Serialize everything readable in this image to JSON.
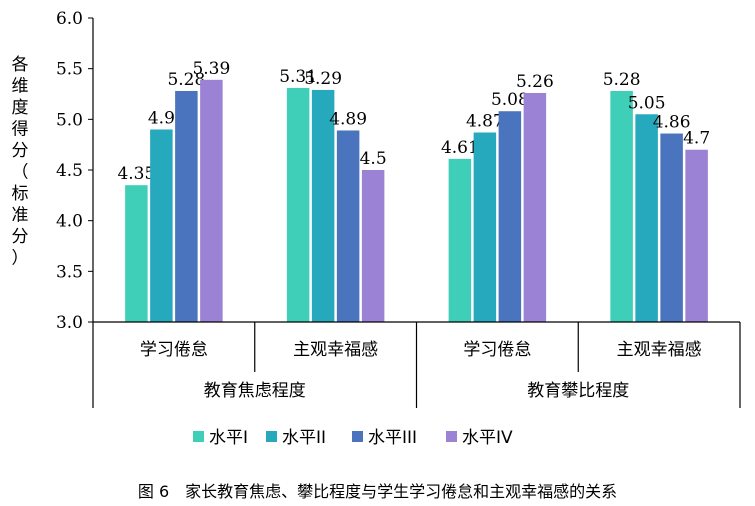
{
  "chart_data": {
    "type": "bar",
    "ylabel": "各维度得分（标准分）",
    "ylim": [
      3.0,
      6.0
    ],
    "yticks": [
      "3.0",
      "3.5",
      "4.0",
      "4.5",
      "5.0",
      "5.5",
      "6.0"
    ],
    "groups": [
      {
        "name": "教育焦虑程度",
        "categories": [
          "学习倦怠",
          "主观幸福感"
        ]
      },
      {
        "name": "教育攀比程度",
        "categories": [
          "学习倦怠",
          "主观幸福感"
        ]
      }
    ],
    "series": [
      {
        "name": "水平I",
        "color": "#3fcfb8",
        "values": [
          4.35,
          5.31,
          4.61,
          5.28
        ],
        "labels": [
          "4.35",
          "5.31",
          "4.61",
          "5.28"
        ]
      },
      {
        "name": "水平II",
        "color": "#27a9bd",
        "values": [
          4.9,
          5.29,
          4.87,
          5.05
        ],
        "labels": [
          "4.9",
          "5.29",
          "4.87",
          "5.05"
        ]
      },
      {
        "name": "水平III",
        "color": "#4a74bd",
        "values": [
          5.28,
          4.89,
          5.08,
          4.86
        ],
        "labels": [
          "5.28",
          "4.89",
          "5.08",
          "4.86"
        ]
      },
      {
        "name": "水平IV",
        "color": "#9b82d4",
        "values": [
          5.39,
          4.5,
          5.26,
          4.7
        ],
        "labels": [
          "5.39",
          "4.5",
          "5.26",
          "4.7"
        ]
      }
    ],
    "legend_position": "bottom",
    "grid": false
  },
  "caption": "图 6　家长教育焦虑、攀比程度与学生学习倦怠和主观幸福感的关系"
}
